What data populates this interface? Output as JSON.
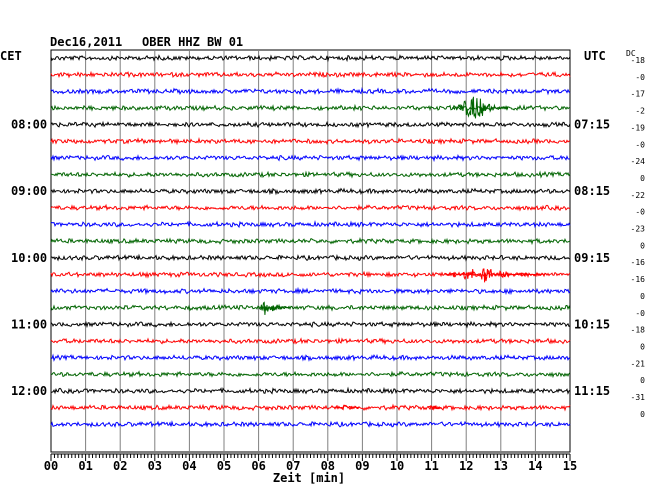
{
  "header": {
    "left_tz": "CET",
    "date": "Dec16,2011",
    "station": "OBER HHZ BW 01",
    "right_tz": "UTC",
    "dc_label": "DC"
  },
  "chart_data": {
    "type": "line",
    "xlabel": "Zeit [min]",
    "x_ticks": [
      "00",
      "01",
      "02",
      "03",
      "04",
      "05",
      "06",
      "07",
      "08",
      "09",
      "10",
      "11",
      "12",
      "13",
      "14",
      "15"
    ],
    "xlim": [
      0,
      15
    ],
    "trace_colors": [
      "#000000",
      "#ff0000",
      "#0000ff",
      "#006400"
    ],
    "left_hour_labels": [
      {
        "row": 4,
        "text": "08:00"
      },
      {
        "row": 8,
        "text": "09:00"
      },
      {
        "row": 12,
        "text": "10:00"
      },
      {
        "row": 16,
        "text": "11:00"
      },
      {
        "row": 20,
        "text": "12:00"
      }
    ],
    "right_hour_labels": [
      {
        "row": 4,
        "text": "07:15"
      },
      {
        "row": 8,
        "text": "08:15"
      },
      {
        "row": 12,
        "text": "09:15"
      },
      {
        "row": 16,
        "text": "10:15"
      },
      {
        "row": 20,
        "text": "11:15"
      }
    ],
    "dc_offsets": [
      "-18",
      "-0",
      "-17",
      "-2",
      "-19",
      "-0",
      "-24",
      "0",
      "-22",
      "-0",
      "-23",
      "0",
      "-16",
      "-16",
      "0",
      "-0",
      "-18",
      "0",
      "-21",
      "0",
      "-31",
      "0"
    ],
    "events": [
      {
        "row": 3,
        "start_min": 11.6,
        "end_min": 13.2,
        "peak_min": 12.3,
        "peak_amp": 14
      },
      {
        "row": 13,
        "start_min": 11.4,
        "end_min": 14.3,
        "peak_min": 12.5,
        "peak_amp": 9
      },
      {
        "row": 15,
        "start_min": 6.0,
        "end_min": 6.9,
        "peak_min": 6.2,
        "peak_amp": 8
      },
      {
        "row": 21,
        "start_min": 8.2,
        "end_min": 8.9,
        "peak_min": 8.5,
        "peak_amp": 3
      },
      {
        "row": 21,
        "start_min": 10.9,
        "end_min": 11.3,
        "peak_min": 11.0,
        "peak_amp": 3
      }
    ]
  }
}
